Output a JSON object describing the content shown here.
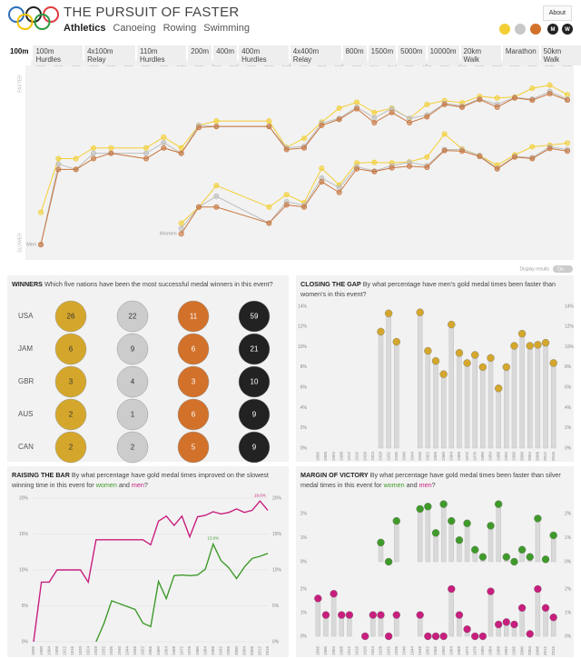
{
  "header": {
    "title": "THE PURSUIT OF FASTER",
    "sports": [
      "Athletics",
      "Canoeing",
      "Rowing",
      "Swimming"
    ],
    "about": "About",
    "gender_buttons": [
      "M",
      "W"
    ]
  },
  "events": [
    "100m",
    "100m Hurdles",
    "4x100m Relay",
    "110m Hurdles",
    "200m",
    "400m",
    "400m Hurdles",
    "4x400m Relay",
    "800m",
    "1500m",
    "5000m",
    "10000m",
    "20km Walk",
    "Marathon",
    "50km Walk"
  ],
  "display_results": {
    "label": "Display results",
    "state": "On"
  },
  "winners": {
    "title": "WINNERS",
    "question": "Which five nations have been the most successful medal winners in this event?",
    "colors": [
      "#d4a72c",
      "#cccccc",
      "#d2712a",
      "#222222"
    ],
    "rows": [
      {
        "country": "USA",
        "values": [
          26,
          22,
          11,
          59
        ]
      },
      {
        "country": "JAM",
        "values": [
          6,
          9,
          6,
          21
        ]
      },
      {
        "country": "GBR",
        "values": [
          3,
          4,
          3,
          10
        ]
      },
      {
        "country": "AUS",
        "values": [
          2,
          1,
          6,
          9
        ]
      },
      {
        "country": "CAN",
        "values": [
          2,
          2,
          5,
          9
        ]
      }
    ]
  },
  "chart_data": [
    {
      "type": "line",
      "top_label": "FASTER",
      "bottom_label": "SLOWER",
      "labels": [
        "Men",
        "Women"
      ],
      "x": [
        1896,
        1900,
        1904,
        1908,
        1912,
        1920,
        1924,
        1928,
        1932,
        1936,
        1948,
        1952,
        1956,
        1960,
        1964,
        1968,
        1972,
        1976,
        1980,
        1984,
        1988,
        1992,
        1996,
        2000,
        2004,
        2008,
        2012,
        2016
      ],
      "xlim": [
        1896,
        2016
      ],
      "xticks": [
        1896,
        1900,
        1904,
        1908,
        1912,
        1916,
        1920,
        1924,
        1928,
        1932,
        1936,
        1940,
        1944,
        1948,
        1952,
        1956,
        1960,
        1964,
        1968,
        1972,
        1976,
        1980,
        1984,
        1988,
        1992,
        1996,
        2000,
        2004,
        2008,
        2012,
        2016
      ],
      "ylim": [
        9.4,
        12.7
      ],
      "y_reversed": true,
      "series": [
        {
          "color": "#f3cf35",
          "values": [
            12.0,
            11.0,
            11.0,
            10.8,
            10.8,
            10.8,
            10.6,
            10.8,
            10.38,
            10.3,
            10.3,
            10.79,
            10.62,
            10.32,
            10.06,
            9.95,
            10.14,
            10.06,
            10.25,
            9.99,
            9.92,
            9.96,
            9.84,
            9.87,
            9.85,
            9.69,
            9.63,
            9.81
          ]
        },
        {
          "color": "#bdbdbd",
          "values": [
            12.6,
            11.1,
            11.2,
            10.9,
            10.9,
            10.9,
            10.7,
            10.9,
            10.38,
            10.4,
            10.4,
            10.8,
            10.77,
            10.34,
            10.25,
            10.04,
            10.24,
            10.07,
            10.25,
            10.19,
            9.97,
            10.02,
            9.89,
            9.99,
            9.86,
            9.89,
            9.75,
            9.89
          ]
        },
        {
          "color": "#c9773f",
          "values": [
            12.6,
            11.2,
            11.2,
            11.0,
            10.9,
            11.0,
            10.8,
            10.9,
            10.42,
            10.4,
            10.4,
            10.83,
            10.8,
            10.38,
            10.27,
            10.07,
            10.33,
            10.14,
            10.33,
            10.22,
            9.99,
            10.04,
            9.9,
            10.04,
            9.87,
            9.91,
            9.79,
            9.91
          ]
        },
        {
          "color": "#f3cf35",
          "values": [
            null,
            null,
            null,
            null,
            null,
            null,
            null,
            12.2,
            11.9,
            11.5,
            11.9,
            11.67,
            11.82,
            11.18,
            11.49,
            11.08,
            11.07,
            11.08,
            11.06,
            10.97,
            10.54,
            10.82,
            10.94,
            11.12,
            10.93,
            10.78,
            10.75,
            10.71
          ]
        },
        {
          "color": "#bdbdbd",
          "values": [
            null,
            null,
            null,
            null,
            null,
            null,
            null,
            12.3,
            11.9,
            11.7,
            12.2,
            11.8,
            11.87,
            11.36,
            11.54,
            11.15,
            11.23,
            11.13,
            11.07,
            11.13,
            10.83,
            10.83,
            10.94,
            11.18,
            10.96,
            10.98,
            10.78,
            10.83
          ]
        },
        {
          "color": "#c9773f",
          "values": [
            null,
            null,
            null,
            null,
            null,
            null,
            null,
            12.4,
            11.9,
            11.9,
            12.2,
            11.86,
            11.9,
            11.43,
            11.63,
            11.19,
            11.24,
            11.17,
            11.14,
            11.16,
            10.85,
            10.86,
            10.96,
            11.19,
            10.97,
            11.0,
            10.81,
            10.86
          ]
        }
      ]
    },
    {
      "type": "bar",
      "title": "CLOSING THE GAP",
      "subtitle": "By what percentage have men's gold medal times been faster than women's in this event?",
      "categories": [
        1896,
        1900,
        1904,
        1908,
        1912,
        1916,
        1920,
        1924,
        1928,
        1932,
        1936,
        1940,
        1944,
        1948,
        1952,
        1956,
        1960,
        1964,
        1968,
        1972,
        1976,
        1980,
        1984,
        1988,
        1992,
        1996,
        2000,
        2004,
        2008,
        2012,
        2016
      ],
      "values": [
        null,
        null,
        null,
        null,
        null,
        null,
        null,
        null,
        11.5,
        13.3,
        10.5,
        null,
        null,
        13.4,
        9.6,
        8.6,
        7.3,
        12.2,
        9.4,
        8.4,
        9.2,
        8.0,
        8.9,
        5.9,
        8.0,
        10.1,
        11.3,
        10.1,
        10.2,
        10.4,
        8.4
      ],
      "bar_color": "#d9d9d9",
      "color": "#d4a72c",
      "ylim": [
        0,
        14
      ],
      "yticks": [
        {
          "value": 0,
          "label": "0%"
        },
        {
          "value": 2,
          "label": "2%"
        },
        {
          "value": 4,
          "label": "4%"
        },
        {
          "value": 6,
          "label": "6%"
        },
        {
          "value": 8,
          "label": "8%"
        },
        {
          "value": 10,
          "label": "10%"
        },
        {
          "value": 12,
          "label": "12%"
        },
        {
          "value": 14,
          "label": "14%"
        }
      ],
      "grid": false
    },
    {
      "type": "line",
      "title": "RAISING THE BAR",
      "subtitle_parts": [
        "By what percentage have gold medal times improved on the slowest winning time in this event for ",
        "women",
        " and ",
        "men",
        "?"
      ],
      "x": [
        1896,
        1900,
        1904,
        1908,
        1912,
        1920,
        1924,
        1928,
        1932,
        1936,
        1948,
        1952,
        1956,
        1960,
        1964,
        1968,
        1972,
        1976,
        1980,
        1984,
        1988,
        1992,
        1996,
        2000,
        2004,
        2008,
        2012,
        2016
      ],
      "xlim": [
        1896,
        2016
      ],
      "xticks": [
        1896,
        1900,
        1904,
        1908,
        1912,
        1916,
        1920,
        1924,
        1928,
        1932,
        1936,
        1940,
        1944,
        1948,
        1952,
        1956,
        1960,
        1964,
        1968,
        1972,
        1976,
        1980,
        1984,
        1988,
        1992,
        1996,
        2000,
        2004,
        2008,
        2012,
        2016
      ],
      "ylim": [
        0,
        20
      ],
      "yticks": [
        {
          "value": 0,
          "label": "0%"
        },
        {
          "value": 5,
          "label": "5%"
        },
        {
          "value": 10,
          "label": "10%"
        },
        {
          "value": 15,
          "label": "15%"
        },
        {
          "value": 20,
          "label": "20%"
        }
      ],
      "grid": true,
      "series": [
        {
          "color": "#3f9a2a",
          "values": [
            null,
            null,
            null,
            null,
            null,
            null,
            null,
            0,
            2.5,
            5.7,
            4.5,
            2.6,
            2.1,
            8.4,
            6.0,
            9.2,
            9.3,
            9.2,
            9.3,
            10.1,
            13.6,
            11.3,
            10.3,
            8.8,
            10.4,
            11.6,
            11.9,
            12.3
          ],
          "value_labels": [
            null,
            null,
            null,
            null,
            null,
            null,
            null,
            null,
            null,
            null,
            null,
            null,
            null,
            null,
            null,
            null,
            null,
            null,
            null,
            null,
            "13.6%",
            null,
            null,
            null,
            null,
            null,
            null,
            null
          ]
        },
        {
          "color": "#c81e7e",
          "values": [
            0,
            8.3,
            8.3,
            10,
            10,
            10,
            8.3,
            14.2,
            14.2,
            14.2,
            14.2,
            14.2,
            13.5,
            16.8,
            17.5,
            16.2,
            17.5,
            14.6,
            17.4,
            17.6,
            18.1,
            17.8,
            18.0,
            18.5,
            18.0,
            18.3,
            19.6,
            18.3
          ],
          "value_labels": [
            null,
            null,
            null,
            null,
            null,
            null,
            null,
            null,
            null,
            null,
            null,
            null,
            null,
            null,
            null,
            null,
            null,
            null,
            null,
            null,
            null,
            null,
            null,
            null,
            null,
            null,
            "19.6%",
            null
          ]
        }
      ]
    },
    {
      "type": "bar",
      "title": "MARGIN OF VICTORY",
      "subtitle_parts": [
        "By what percentage have gold medal times been faster than silver medal times in this event for ",
        "women",
        " and ",
        "men",
        "?"
      ],
      "categories": [
        1896,
        1900,
        1904,
        1908,
        1912,
        1916,
        1920,
        1924,
        1928,
        1932,
        1936,
        1940,
        1944,
        1948,
        1952,
        1956,
        1960,
        1964,
        1968,
        1972,
        1976,
        1980,
        1984,
        1988,
        1992,
        1996,
        2000,
        2004,
        2008,
        2012,
        2016
      ],
      "values": [
        null,
        null,
        null,
        null,
        null,
        null,
        null,
        null,
        0.8,
        0,
        1.7,
        null,
        null,
        2.2,
        2.3,
        1.2,
        2.4,
        1.7,
        0.9,
        1.6,
        0.5,
        0.2,
        1.5,
        2.4,
        0.2,
        0,
        0.5,
        0.2,
        1.8,
        0.1,
        1.1
      ],
      "bar_color": "#d9d9d9",
      "color": "#3f9a2a",
      "ylim": [
        0,
        2.5
      ],
      "yticks": [
        {
          "value": 0,
          "label": "0%"
        },
        {
          "value": 1,
          "label": "1%"
        },
        {
          "value": 2,
          "label": "2%"
        }
      ],
      "grid": false
    },
    {
      "type": "bar",
      "categories": [
        1896,
        1900,
        1904,
        1908,
        1912,
        1916,
        1920,
        1924,
        1928,
        1932,
        1936,
        1940,
        1944,
        1948,
        1952,
        1956,
        1960,
        1964,
        1968,
        1972,
        1976,
        1980,
        1984,
        1988,
        1992,
        1996,
        2000,
        2004,
        2008,
        2012,
        2016
      ],
      "values": [
        1.6,
        0.9,
        1.8,
        0.9,
        0.9,
        null,
        0,
        0.9,
        0.9,
        0,
        0.9,
        null,
        null,
        0.9,
        0,
        0,
        0,
        2.0,
        0.9,
        0.3,
        0,
        0,
        1.9,
        0.5,
        0.6,
        0.5,
        1.2,
        0.1,
        2.0,
        1.2,
        0.8
      ],
      "bar_color": "#d9d9d9",
      "color": "#c81e7e",
      "ylim": [
        0,
        2.5
      ],
      "yticks": [
        {
          "value": 0,
          "label": "0%"
        },
        {
          "value": 1,
          "label": "1%"
        },
        {
          "value": 2,
          "label": "2%"
        }
      ],
      "grid": false
    }
  ]
}
